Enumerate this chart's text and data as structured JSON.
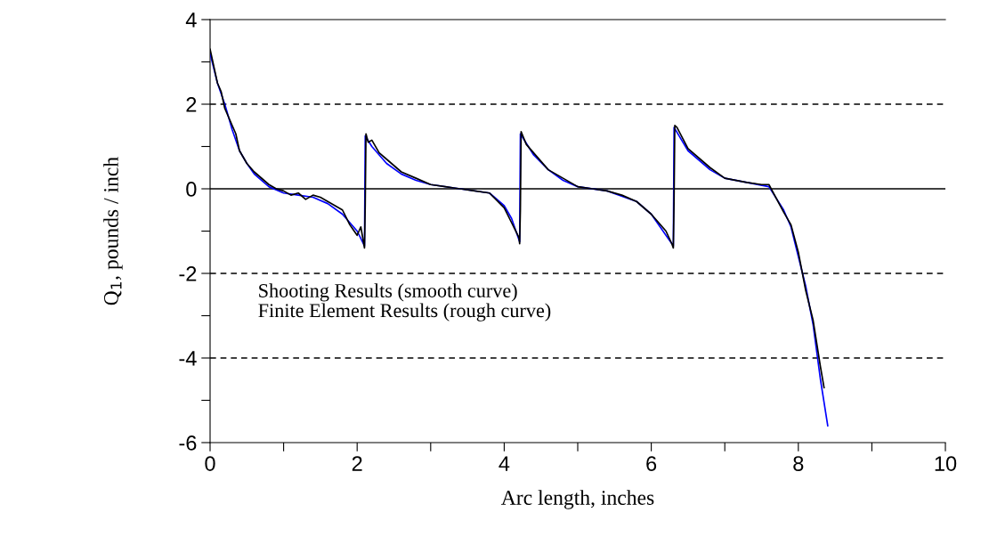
{
  "chart_data": {
    "type": "line",
    "xlabel": "Arc length, inches",
    "ylabel": "Q$_{1}$, pounds / inch",
    "xlim": [
      0,
      10
    ],
    "ylim": [
      -6,
      4
    ],
    "xticks": [
      0,
      {
        "value": 1,
        "label": null
      },
      2,
      {
        "value": 3,
        "label": null
      },
      4,
      {
        "value": 5,
        "label": null
      },
      6,
      {
        "value": 7,
        "label": null
      },
      8,
      {
        "value": 9,
        "label": null
      },
      10
    ],
    "yticks": [
      -6,
      {
        "value": -5,
        "label": null
      },
      -4,
      {
        "value": -3,
        "label": null
      },
      -2,
      {
        "value": -1,
        "label": null
      },
      0,
      {
        "value": 1,
        "label": null
      },
      2,
      {
        "value": 3,
        "label": null
      },
      4
    ],
    "grid": false,
    "legend": false,
    "marker": "none",
    "line_style": "solid",
    "ref_lines": [
      {
        "axis": "y",
        "value": 2,
        "color": "#000000",
        "line_style": "dashed"
      },
      {
        "axis": "y",
        "value": 0,
        "color": "#000000",
        "line_style": "solid"
      },
      {
        "axis": "y",
        "value": -2,
        "color": "#000000",
        "line_style": "dashed"
      },
      {
        "axis": "y",
        "value": -4,
        "color": "#000000",
        "line_style": "dashed"
      }
    ],
    "annotations": [
      "Shooting Results (smooth curve)",
      "Finite Element Results (rough curve)"
    ],
    "series": [
      {
        "color": "#0000ff",
        "x": [
          0,
          0.1,
          0.2,
          0.3,
          0.4,
          0.5,
          0.6,
          0.8,
          1.0,
          1.2,
          1.4,
          1.6,
          1.8,
          2.0,
          2.1,
          2.11,
          2.2,
          2.4,
          2.6,
          2.8,
          3.0,
          3.4,
          3.8,
          4.0,
          4.1,
          4.21,
          4.22,
          4.4,
          4.6,
          4.8,
          5.0,
          5.4,
          5.8,
          6.0,
          6.2,
          6.3,
          6.31,
          6.5,
          6.8,
          7.0,
          7.3,
          7.6,
          7.8,
          7.9,
          8.0,
          8.1,
          8.2,
          8.3,
          8.4
        ],
        "values": [
          3.2,
          2.5,
          2.0,
          1.4,
          0.9,
          0.6,
          0.35,
          0.05,
          -0.1,
          -0.15,
          -0.2,
          -0.35,
          -0.6,
          -1.0,
          -1.35,
          1.25,
          1.0,
          0.6,
          0.35,
          0.2,
          0.1,
          0.0,
          -0.1,
          -0.4,
          -0.7,
          -1.25,
          1.3,
          0.8,
          0.45,
          0.2,
          0.05,
          -0.05,
          -0.3,
          -0.6,
          -1.1,
          -1.35,
          1.45,
          0.9,
          0.45,
          0.25,
          0.15,
          0.05,
          -0.5,
          -0.9,
          -1.6,
          -2.3,
          -3.2,
          -4.5,
          -5.6
        ]
      },
      {
        "color": "#000000",
        "x": [
          0,
          0.1,
          0.15,
          0.2,
          0.3,
          0.35,
          0.4,
          0.5,
          0.6,
          0.8,
          0.9,
          1.0,
          1.1,
          1.2,
          1.3,
          1.4,
          1.5,
          1.6,
          1.8,
          1.9,
          2.0,
          2.05,
          2.1,
          2.11,
          2.12,
          2.15,
          2.2,
          2.3,
          2.4,
          2.6,
          2.8,
          3.0,
          3.2,
          3.4,
          3.6,
          3.8,
          4.0,
          4.1,
          4.2,
          4.21,
          4.22,
          4.23,
          4.3,
          4.4,
          4.6,
          4.8,
          5.0,
          5.2,
          5.4,
          5.6,
          5.8,
          6.0,
          6.2,
          6.28,
          6.3,
          6.31,
          6.32,
          6.35,
          6.5,
          6.8,
          7.0,
          7.3,
          7.5,
          7.6,
          7.8,
          7.9,
          8.0,
          8.1,
          8.2,
          8.3,
          8.35
        ],
        "values": [
          3.3,
          2.5,
          2.3,
          1.9,
          1.5,
          1.3,
          0.9,
          0.6,
          0.4,
          0.1,
          0.0,
          -0.05,
          -0.15,
          -0.1,
          -0.25,
          -0.15,
          -0.2,
          -0.3,
          -0.5,
          -0.85,
          -1.1,
          -0.9,
          -1.4,
          -0.4,
          1.3,
          1.1,
          1.15,
          0.85,
          0.7,
          0.4,
          0.25,
          0.1,
          0.05,
          0.0,
          -0.05,
          -0.1,
          -0.45,
          -0.8,
          -1.15,
          -1.3,
          -0.5,
          1.35,
          1.05,
          0.85,
          0.45,
          0.25,
          0.05,
          0.0,
          -0.05,
          -0.15,
          -0.3,
          -0.6,
          -1.0,
          -1.3,
          -1.4,
          -0.3,
          1.5,
          1.45,
          0.95,
          0.5,
          0.25,
          0.15,
          0.1,
          0.1,
          -0.55,
          -0.85,
          -1.5,
          -2.4,
          -3.1,
          -4.2,
          -4.7
        ]
      }
    ]
  }
}
